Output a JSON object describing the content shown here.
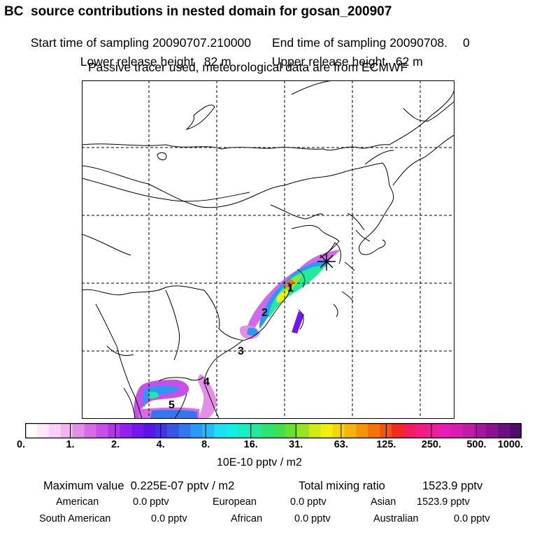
{
  "header": {
    "title": "BC  source contributions in nested domain for gosan_200907",
    "start_label": "Start time of sampling 20090707.210000",
    "end_label": "End time of sampling 20090708.",
    "end_suffix": "0",
    "lower_release": "Lower release height   82 m",
    "upper_release": "Upper release height   62 m",
    "tracer_note": "Passive tracer used, meteorological data are from ECMWF"
  },
  "map": {
    "region_labels": [
      "1",
      "2",
      "3",
      "4",
      "5"
    ],
    "receptor_symbol": "asterisk",
    "colors": {
      "coast": "#000000",
      "grid": "#000000"
    }
  },
  "colorbar": {
    "ticks": [
      "0.",
      "1.",
      "2.",
      "4.",
      "8.",
      "16.",
      "31.",
      "63.",
      "125.",
      "250.",
      "500.",
      "1000."
    ],
    "colors": [
      "#ffffff",
      "#fde8fd",
      "#f9d0f9",
      "#f2b5f2",
      "#e48ee8",
      "#d86be6",
      "#c650e8",
      "#b136ea",
      "#9122ec",
      "#7417ec",
      "#5a14e8",
      "#4433e0",
      "#3855e6",
      "#3377ee",
      "#2a99f4",
      "#24bbf7",
      "#1ee0f4",
      "#10f0e4",
      "#14f0c0",
      "#20ea9c",
      "#2ce474",
      "#40e04c",
      "#68e030",
      "#98e420",
      "#d0ec14",
      "#f0f010",
      "#f4d410",
      "#f4b40c",
      "#f49408",
      "#f47408",
      "#f45410",
      "#f02c20",
      "#f41c5c",
      "#f41c84",
      "#f01ca0",
      "#e81cb8",
      "#d81cb4",
      "#c01ca8",
      "#a4189c",
      "#881490",
      "#6c1080",
      "#500c68"
    ],
    "unit": "10E-10 pptv / m2"
  },
  "stats": {
    "max_label": "Maximum value  0.225E-07 pptv / m2",
    "total_label": "Total mixing ratio",
    "total_value": "1523.9 pptv",
    "american": "American",
    "american_val": "0.0 pptv",
    "european": "European",
    "european_val": "0.0 pptv",
    "asian": "Asian",
    "asian_val": "1523.9 pptv",
    "south_american": "South American",
    "south_american_val": "0.0 pptv",
    "african": "African",
    "african_val": "0.0 pptv",
    "australian": "Australian",
    "australian_val": "0.0 pptv"
  }
}
